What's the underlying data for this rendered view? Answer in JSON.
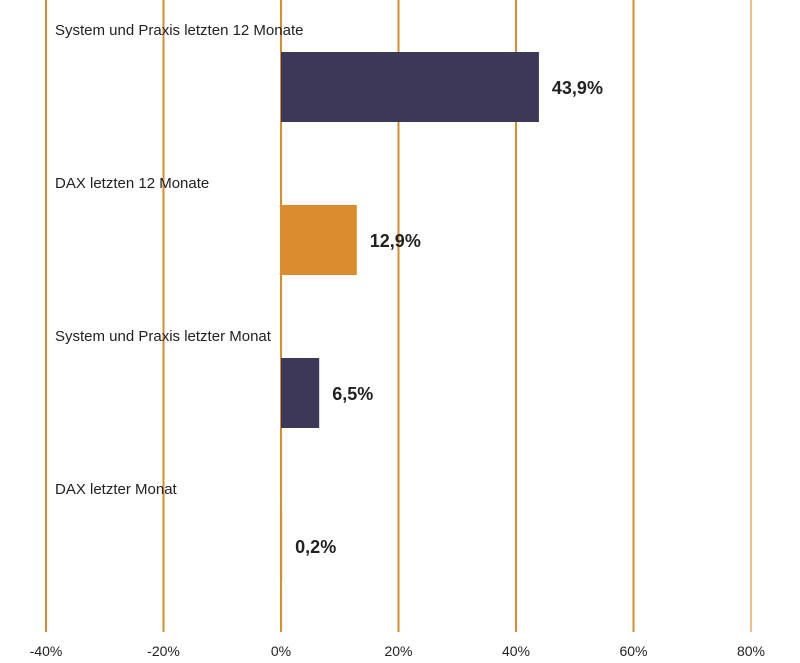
{
  "chart_data": {
    "type": "bar",
    "orientation": "horizontal",
    "categories": [
      "System und Praxis letzten 12 Monate",
      "DAX letzten 12 Monate",
      "System und Praxis letzter Monat",
      "DAX letzter Monat"
    ],
    "values": [
      43.9,
      12.9,
      6.5,
      0.2
    ],
    "value_labels": [
      "43,9%",
      "12,9%",
      "6,5%",
      "0,2%"
    ],
    "bar_colors": [
      "#3d3758",
      "#db8c2c",
      "#3d3758",
      "#db8c2c"
    ],
    "xlim": [
      -40,
      80
    ],
    "x_ticks": [
      -40,
      -20,
      0,
      20,
      40,
      60,
      80
    ],
    "x_tick_labels": [
      "-40%",
      "-20%",
      "0%",
      "20%",
      "40%",
      "60%",
      "80%"
    ],
    "grid": true,
    "grid_color": "#db8c2c",
    "title": "",
    "xlabel": "",
    "ylabel": ""
  }
}
